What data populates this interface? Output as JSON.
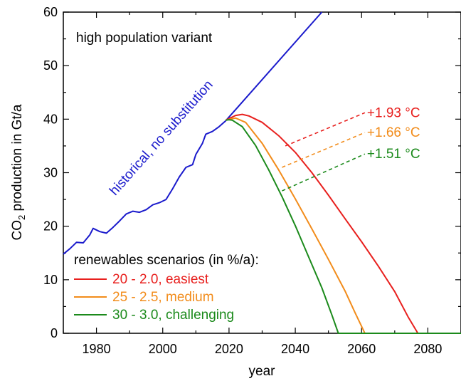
{
  "chart_data": {
    "type": "line",
    "xlabel": "year",
    "ylabel_main": "CO",
    "ylabel_sub": "2",
    "ylabel_rest": " production in Gt/a",
    "xlim": [
      1970,
      2090
    ],
    "ylim": [
      0,
      60
    ],
    "xticks": [
      1980,
      2000,
      2020,
      2040,
      2060,
      2080
    ],
    "yticks": [
      0,
      10,
      20,
      30,
      40,
      50,
      60
    ],
    "grid": false,
    "annotation_top": "high population variant",
    "series": [
      {
        "name": "historical, no substitution",
        "color": "#1a1acc",
        "points": [
          [
            1970,
            14.8
          ],
          [
            1972,
            15.8
          ],
          [
            1974,
            17.0
          ],
          [
            1976,
            16.9
          ],
          [
            1978,
            18.4
          ],
          [
            1979,
            19.6
          ],
          [
            1981,
            19.0
          ],
          [
            1983,
            18.7
          ],
          [
            1985,
            19.8
          ],
          [
            1987,
            21.0
          ],
          [
            1989,
            22.3
          ],
          [
            1991,
            22.8
          ],
          [
            1993,
            22.6
          ],
          [
            1995,
            23.1
          ],
          [
            1997,
            24.0
          ],
          [
            1999,
            24.4
          ],
          [
            2001,
            25.0
          ],
          [
            2003,
            27.0
          ],
          [
            2005,
            29.2
          ],
          [
            2007,
            31.0
          ],
          [
            2009,
            31.5
          ],
          [
            2010,
            33.4
          ],
          [
            2012,
            35.5
          ],
          [
            2013,
            37.2
          ],
          [
            2015,
            37.7
          ],
          [
            2017,
            38.6
          ],
          [
            2019,
            39.7
          ],
          [
            2048,
            60.0
          ]
        ]
      },
      {
        "name": "20 - 2.0, easiest",
        "color": "#e8201e",
        "points": [
          [
            2019,
            39.8
          ],
          [
            2022,
            40.7
          ],
          [
            2024,
            40.9
          ],
          [
            2026,
            40.6
          ],
          [
            2030,
            39.4
          ],
          [
            2035,
            36.9
          ],
          [
            2040,
            33.8
          ],
          [
            2045,
            30.0
          ],
          [
            2050,
            25.8
          ],
          [
            2055,
            21.4
          ],
          [
            2060,
            17.1
          ],
          [
            2065,
            12.6
          ],
          [
            2070,
            7.8
          ],
          [
            2074,
            3.1
          ],
          [
            2077,
            0
          ],
          [
            2090,
            0
          ]
        ]
      },
      {
        "name": "25 - 2.5, medium",
        "color": "#f28c1b",
        "points": [
          [
            2019,
            39.8
          ],
          [
            2021,
            40.1
          ],
          [
            2022,
            40.2
          ],
          [
            2025,
            39.4
          ],
          [
            2030,
            35.5
          ],
          [
            2035,
            30.5
          ],
          [
            2040,
            25.1
          ],
          [
            2045,
            19.5
          ],
          [
            2050,
            13.8
          ],
          [
            2055,
            7.9
          ],
          [
            2058,
            3.9
          ],
          [
            2061,
            0
          ],
          [
            2090,
            0
          ]
        ]
      },
      {
        "name": "30 - 3.0, challenging",
        "color": "#1b8a1b",
        "points": [
          [
            2019,
            39.8
          ],
          [
            2020,
            39.9
          ],
          [
            2021,
            39.8
          ],
          [
            2024,
            38.6
          ],
          [
            2028,
            35.1
          ],
          [
            2032,
            30.5
          ],
          [
            2036,
            25.5
          ],
          [
            2040,
            20.1
          ],
          [
            2044,
            14.3
          ],
          [
            2048,
            8.5
          ],
          [
            2051,
            3.5
          ],
          [
            2053,
            0
          ],
          [
            2090,
            0
          ]
        ]
      }
    ],
    "temperature_labels": [
      {
        "text": "+1.93 °C",
        "color": "#e8201e",
        "from": [
          2037,
          35.0
        ],
        "to": [
          2061,
          41.2
        ]
      },
      {
        "text": "+1.66 °C",
        "color": "#f28c1b",
        "from": [
          2036,
          31.0
        ],
        "to": [
          2061,
          37.5
        ]
      },
      {
        "text": "+1.51 °C",
        "color": "#1b8a1b",
        "from": [
          2036,
          26.6
        ],
        "to": [
          2061,
          33.5
        ]
      }
    ],
    "legend": {
      "title": "renewables scenarios (in %/a):",
      "position": "bottom-left"
    }
  }
}
